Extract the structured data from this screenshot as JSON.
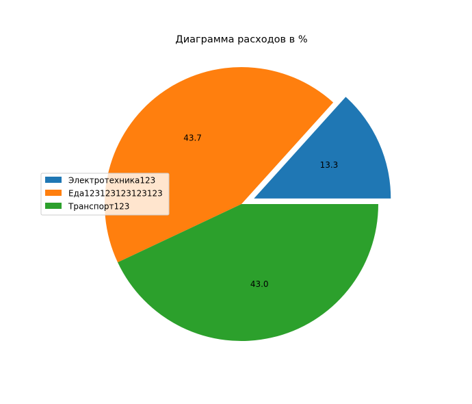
{
  "chart_data": {
    "type": "pie",
    "title": "Диаграмма расходов в %",
    "labels": [
      "Электротехника123",
      "Еда123123123123123",
      "Транспорт123"
    ],
    "values": [
      13.3,
      43.7,
      43.0
    ],
    "value_labels": [
      "13.3",
      "43.7",
      "43.0"
    ],
    "colors": [
      "#1f77b4",
      "#ff7f0e",
      "#2ca02c"
    ],
    "explode": [
      0.1,
      0,
      0
    ],
    "start_angle_deg": 0,
    "direction": "counterclockwise",
    "legend": {
      "placement": "center-left"
    }
  }
}
